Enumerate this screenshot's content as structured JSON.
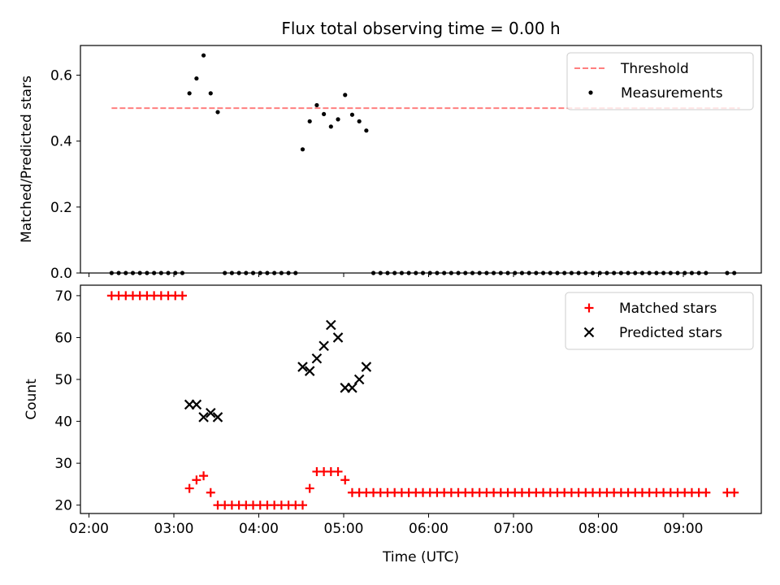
{
  "chart_data": [
    {
      "type": "scatter",
      "title": "Flux total observing time = 0.00 h",
      "ylabel": "Matched/Predicted stars",
      "xlabel": "",
      "ylim": [
        0,
        0.69
      ],
      "x_tick_labels": [],
      "y_ticks": [
        0.0,
        0.2,
        0.4,
        0.6
      ],
      "y_tick_labels": [
        "0.0",
        "0.2",
        "0.4",
        "0.6"
      ],
      "legend_position": "top-right",
      "threshold": {
        "name": "Threshold",
        "value": 0.5,
        "x_start": "02:16",
        "x_end": "09:40",
        "color": "#ff7f7f",
        "style": "dashed"
      },
      "series": [
        {
          "name": "Measurements",
          "color": "#000000",
          "marker": "dot",
          "points": [
            [
              "02:16",
              0
            ],
            [
              "02:21",
              0
            ],
            [
              "02:26",
              0
            ],
            [
              "02:31",
              0
            ],
            [
              "02:36",
              0
            ],
            [
              "02:41",
              0
            ],
            [
              "02:46",
              0
            ],
            [
              "02:51",
              0
            ],
            [
              "02:56",
              0
            ],
            [
              "03:01",
              0
            ],
            [
              "03:06",
              0
            ],
            [
              "03:11",
              0.545
            ],
            [
              "03:16",
              0.59
            ],
            [
              "03:21",
              0.66
            ],
            [
              "03:26",
              0.545
            ],
            [
              "03:31",
              0.488
            ],
            [
              "03:36",
              0
            ],
            [
              "03:41",
              0
            ],
            [
              "03:46",
              0
            ],
            [
              "03:51",
              0
            ],
            [
              "03:56",
              0
            ],
            [
              "04:01",
              0
            ],
            [
              "04:06",
              0
            ],
            [
              "04:11",
              0
            ],
            [
              "04:16",
              0
            ],
            [
              "04:21",
              0
            ],
            [
              "04:26",
              0
            ],
            [
              "04:31",
              0.375
            ],
            [
              "04:36",
              0.46
            ],
            [
              "04:41",
              0.509
            ],
            [
              "04:46",
              0.482
            ],
            [
              "04:51",
              0.444
            ],
            [
              "04:56",
              0.466
            ],
            [
              "05:01",
              0.54
            ],
            [
              "05:06",
              0.48
            ],
            [
              "05:11",
              0.46
            ],
            [
              "05:16",
              0.432
            ],
            [
              "05:21",
              0
            ],
            [
              "05:26",
              0
            ],
            [
              "05:31",
              0
            ],
            [
              "05:36",
              0
            ],
            [
              "05:41",
              0
            ],
            [
              "05:46",
              0
            ],
            [
              "05:51",
              0
            ],
            [
              "05:56",
              0
            ],
            [
              "06:01",
              0
            ],
            [
              "06:06",
              0
            ],
            [
              "06:11",
              0
            ],
            [
              "06:16",
              0
            ],
            [
              "06:21",
              0
            ],
            [
              "06:26",
              0
            ],
            [
              "06:31",
              0
            ],
            [
              "06:36",
              0
            ],
            [
              "06:41",
              0
            ],
            [
              "06:46",
              0
            ],
            [
              "06:51",
              0
            ],
            [
              "06:56",
              0
            ],
            [
              "07:01",
              0
            ],
            [
              "07:06",
              0
            ],
            [
              "07:11",
              0
            ],
            [
              "07:16",
              0
            ],
            [
              "07:21",
              0
            ],
            [
              "07:26",
              0
            ],
            [
              "07:31",
              0
            ],
            [
              "07:36",
              0
            ],
            [
              "07:41",
              0
            ],
            [
              "07:46",
              0
            ],
            [
              "07:51",
              0
            ],
            [
              "07:56",
              0
            ],
            [
              "08:01",
              0
            ],
            [
              "08:06",
              0
            ],
            [
              "08:11",
              0
            ],
            [
              "08:16",
              0
            ],
            [
              "08:21",
              0
            ],
            [
              "08:26",
              0
            ],
            [
              "08:31",
              0
            ],
            [
              "08:36",
              0
            ],
            [
              "08:41",
              0
            ],
            [
              "08:46",
              0
            ],
            [
              "08:51",
              0
            ],
            [
              "08:56",
              0
            ],
            [
              "09:01",
              0
            ],
            [
              "09:06",
              0
            ],
            [
              "09:11",
              0
            ],
            [
              "09:16",
              0
            ],
            [
              "09:31",
              0
            ],
            [
              "09:36",
              0
            ]
          ]
        }
      ]
    },
    {
      "type": "scatter",
      "title": "",
      "ylabel": "Count",
      "xlabel": "Time (UTC)",
      "ylim": [
        18,
        72.5
      ],
      "y_ticks": [
        20,
        30,
        40,
        50,
        60,
        70
      ],
      "y_tick_labels": [
        "20",
        "30",
        "40",
        "50",
        "60",
        "70"
      ],
      "x_ticks": [
        "02:00",
        "03:00",
        "04:00",
        "05:00",
        "06:00",
        "07:00",
        "08:00",
        "09:00"
      ],
      "x_tick_labels": [
        "02:00",
        "03:00",
        "04:00",
        "05:00",
        "06:00",
        "07:00",
        "08:00",
        "09:00"
      ],
      "legend_position": "top-right",
      "series": [
        {
          "name": "Matched stars",
          "color": "#ff0000",
          "marker": "plus",
          "points": [
            [
              "02:16",
              70
            ],
            [
              "02:21",
              70
            ],
            [
              "02:26",
              70
            ],
            [
              "02:31",
              70
            ],
            [
              "02:36",
              70
            ],
            [
              "02:41",
              70
            ],
            [
              "02:46",
              70
            ],
            [
              "02:51",
              70
            ],
            [
              "02:56",
              70
            ],
            [
              "03:01",
              70
            ],
            [
              "03:06",
              70
            ],
            [
              "03:11",
              24
            ],
            [
              "03:16",
              26
            ],
            [
              "03:21",
              27
            ],
            [
              "03:26",
              23
            ],
            [
              "03:31",
              20
            ],
            [
              "03:36",
              20
            ],
            [
              "03:41",
              20
            ],
            [
              "03:46",
              20
            ],
            [
              "03:51",
              20
            ],
            [
              "03:56",
              20
            ],
            [
              "04:01",
              20
            ],
            [
              "04:06",
              20
            ],
            [
              "04:11",
              20
            ],
            [
              "04:16",
              20
            ],
            [
              "04:21",
              20
            ],
            [
              "04:26",
              20
            ],
            [
              "04:31",
              20
            ],
            [
              "04:36",
              24
            ],
            [
              "04:41",
              28
            ],
            [
              "04:46",
              28
            ],
            [
              "04:51",
              28
            ],
            [
              "04:56",
              28
            ],
            [
              "05:01",
              26
            ],
            [
              "05:06",
              23
            ],
            [
              "05:11",
              23
            ],
            [
              "05:16",
              23
            ],
            [
              "05:21",
              23
            ],
            [
              "05:26",
              23
            ],
            [
              "05:31",
              23
            ],
            [
              "05:36",
              23
            ],
            [
              "05:41",
              23
            ],
            [
              "05:46",
              23
            ],
            [
              "05:51",
              23
            ],
            [
              "05:56",
              23
            ],
            [
              "06:01",
              23
            ],
            [
              "06:06",
              23
            ],
            [
              "06:11",
              23
            ],
            [
              "06:16",
              23
            ],
            [
              "06:21",
              23
            ],
            [
              "06:26",
              23
            ],
            [
              "06:31",
              23
            ],
            [
              "06:36",
              23
            ],
            [
              "06:41",
              23
            ],
            [
              "06:46",
              23
            ],
            [
              "06:51",
              23
            ],
            [
              "06:56",
              23
            ],
            [
              "07:01",
              23
            ],
            [
              "07:06",
              23
            ],
            [
              "07:11",
              23
            ],
            [
              "07:16",
              23
            ],
            [
              "07:21",
              23
            ],
            [
              "07:26",
              23
            ],
            [
              "07:31",
              23
            ],
            [
              "07:36",
              23
            ],
            [
              "07:41",
              23
            ],
            [
              "07:46",
              23
            ],
            [
              "07:51",
              23
            ],
            [
              "07:56",
              23
            ],
            [
              "08:01",
              23
            ],
            [
              "08:06",
              23
            ],
            [
              "08:11",
              23
            ],
            [
              "08:16",
              23
            ],
            [
              "08:21",
              23
            ],
            [
              "08:26",
              23
            ],
            [
              "08:31",
              23
            ],
            [
              "08:36",
              23
            ],
            [
              "08:41",
              23
            ],
            [
              "08:46",
              23
            ],
            [
              "08:51",
              23
            ],
            [
              "08:56",
              23
            ],
            [
              "09:01",
              23
            ],
            [
              "09:06",
              23
            ],
            [
              "09:11",
              23
            ],
            [
              "09:16",
              23
            ],
            [
              "09:31",
              23
            ],
            [
              "09:36",
              23
            ]
          ]
        },
        {
          "name": "Predicted stars",
          "color": "#000000",
          "marker": "x",
          "points": [
            [
              "03:11",
              44
            ],
            [
              "03:16",
              44
            ],
            [
              "03:21",
              41
            ],
            [
              "03:26",
              42
            ],
            [
              "03:31",
              41
            ],
            [
              "04:31",
              53
            ],
            [
              "04:36",
              52
            ],
            [
              "04:41",
              55
            ],
            [
              "04:46",
              58
            ],
            [
              "04:51",
              63
            ],
            [
              "04:56",
              60
            ],
            [
              "05:01",
              48
            ],
            [
              "05:06",
              48
            ],
            [
              "05:11",
              50
            ],
            [
              "05:16",
              53
            ]
          ]
        }
      ]
    }
  ]
}
